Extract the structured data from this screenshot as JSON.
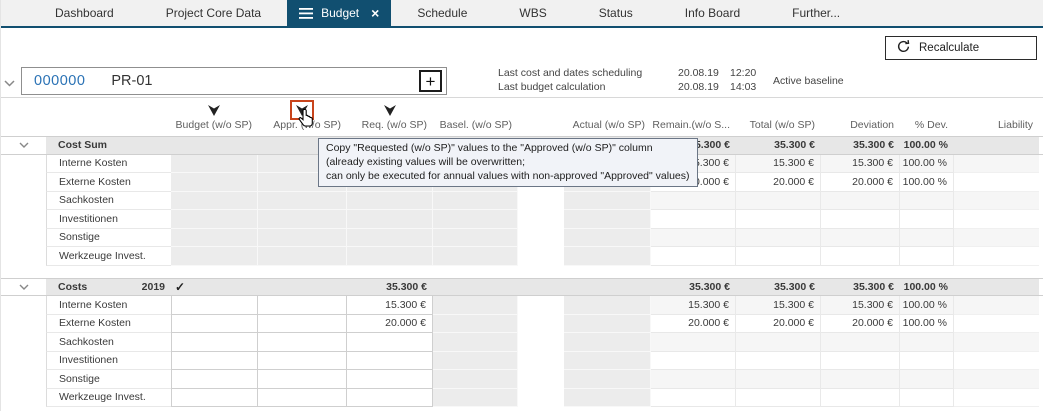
{
  "nav": {
    "tabs": [
      {
        "label": "Dashboard",
        "active": false
      },
      {
        "label": "Project Core Data",
        "active": false
      },
      {
        "label": "Budget",
        "active": true,
        "closable": true
      },
      {
        "label": "Schedule",
        "active": false
      },
      {
        "label": "WBS",
        "active": false
      },
      {
        "label": "Status",
        "active": false
      },
      {
        "label": "Info Board",
        "active": false
      },
      {
        "label": "Further...",
        "active": false
      }
    ]
  },
  "toolbar": {
    "recalculate_label": "Recalculate"
  },
  "project": {
    "number": "000000",
    "code": "PR-01",
    "meta": [
      {
        "label": "Last cost and dates scheduling",
        "date": "20.08.19",
        "time": "12:20"
      },
      {
        "label": "Last budget calculation",
        "date": "20.08.19",
        "time": "14:03"
      }
    ],
    "baseline_label": "Active baseline"
  },
  "columns": [
    {
      "key": "budget",
      "label": "Budget (w/o SP)",
      "filter_icon": true
    },
    {
      "key": "appr",
      "label": "Appr. (w/o SP)",
      "filter_icon": true,
      "highlighted": true
    },
    {
      "key": "req",
      "label": "Req. (w/o SP)",
      "filter_icon": true
    },
    {
      "key": "basel",
      "label": "Basel. (w/o SP)",
      "filter_icon": false
    },
    {
      "key": "actual",
      "label": "Actual (w/o SP)",
      "filter_icon": false
    },
    {
      "key": "remain",
      "label": "Remain.(w/o S...",
      "filter_icon": false
    },
    {
      "key": "total",
      "label": "Total (w/o SP)",
      "filter_icon": false
    },
    {
      "key": "deviation",
      "label": "Deviation",
      "filter_icon": false
    },
    {
      "key": "pctdev",
      "label": "% Dev.",
      "filter_icon": false
    },
    {
      "key": "liability",
      "label": "Liability",
      "filter_icon": false
    }
  ],
  "tooltip": {
    "lines": [
      "Copy \"Requested (w/o SP)\" values to the \"Approved (w/o SP)\" column",
      "(already existing values will be overwritten;",
      "can only be executed for annual values with non-approved \"Approved\" values)"
    ]
  },
  "table": {
    "groups": [
      {
        "title": "Cost Sum",
        "year": "",
        "checked": false,
        "editable": false,
        "summary": {
          "remain": "35.300 €",
          "total": "35.300 €",
          "deviation": "35.300 €",
          "pctdev": "100.00 %"
        },
        "rows": [
          {
            "label": "Interne Kosten",
            "remain": "15.300 €",
            "total": "15.300 €",
            "deviation": "15.300 €",
            "pctdev": "100.00 %"
          },
          {
            "label": "Externe Kosten",
            "req": "20.000 €",
            "remain": "20.000 €",
            "total": "20.000 €",
            "deviation": "20.000 €",
            "pctdev": "100.00 %"
          },
          {
            "label": "Sachkosten"
          },
          {
            "label": "Investitionen"
          },
          {
            "label": "Sonstige"
          },
          {
            "label": "Werkzeuge Invest."
          }
        ]
      },
      {
        "title": "Costs",
        "year": "2019",
        "checked": true,
        "editable": true,
        "summary": {
          "req": "35.300 €",
          "remain": "35.300 €",
          "total": "35.300 €",
          "deviation": "35.300 €",
          "pctdev": "100.00 %"
        },
        "rows": [
          {
            "label": "Interne Kosten",
            "req": "15.300 €",
            "remain": "15.300 €",
            "total": "15.300 €",
            "deviation": "15.300 €",
            "pctdev": "100.00 %"
          },
          {
            "label": "Externe Kosten",
            "req": "20.000 €",
            "remain": "20.000 €",
            "total": "20.000 €",
            "deviation": "20.000 €",
            "pctdev": "100.00 %"
          },
          {
            "label": "Sachkosten"
          },
          {
            "label": "Investitionen"
          },
          {
            "label": "Sonstige"
          },
          {
            "label": "Werkzeuge Invest."
          }
        ]
      }
    ]
  },
  "colors": {
    "accent_blue": "#114f70",
    "link_blue": "#2a72b5",
    "highlight_orange": "#c8441c",
    "group_row_gray": "#e7e7e7",
    "readonly_cell_gray": "#ececec"
  }
}
